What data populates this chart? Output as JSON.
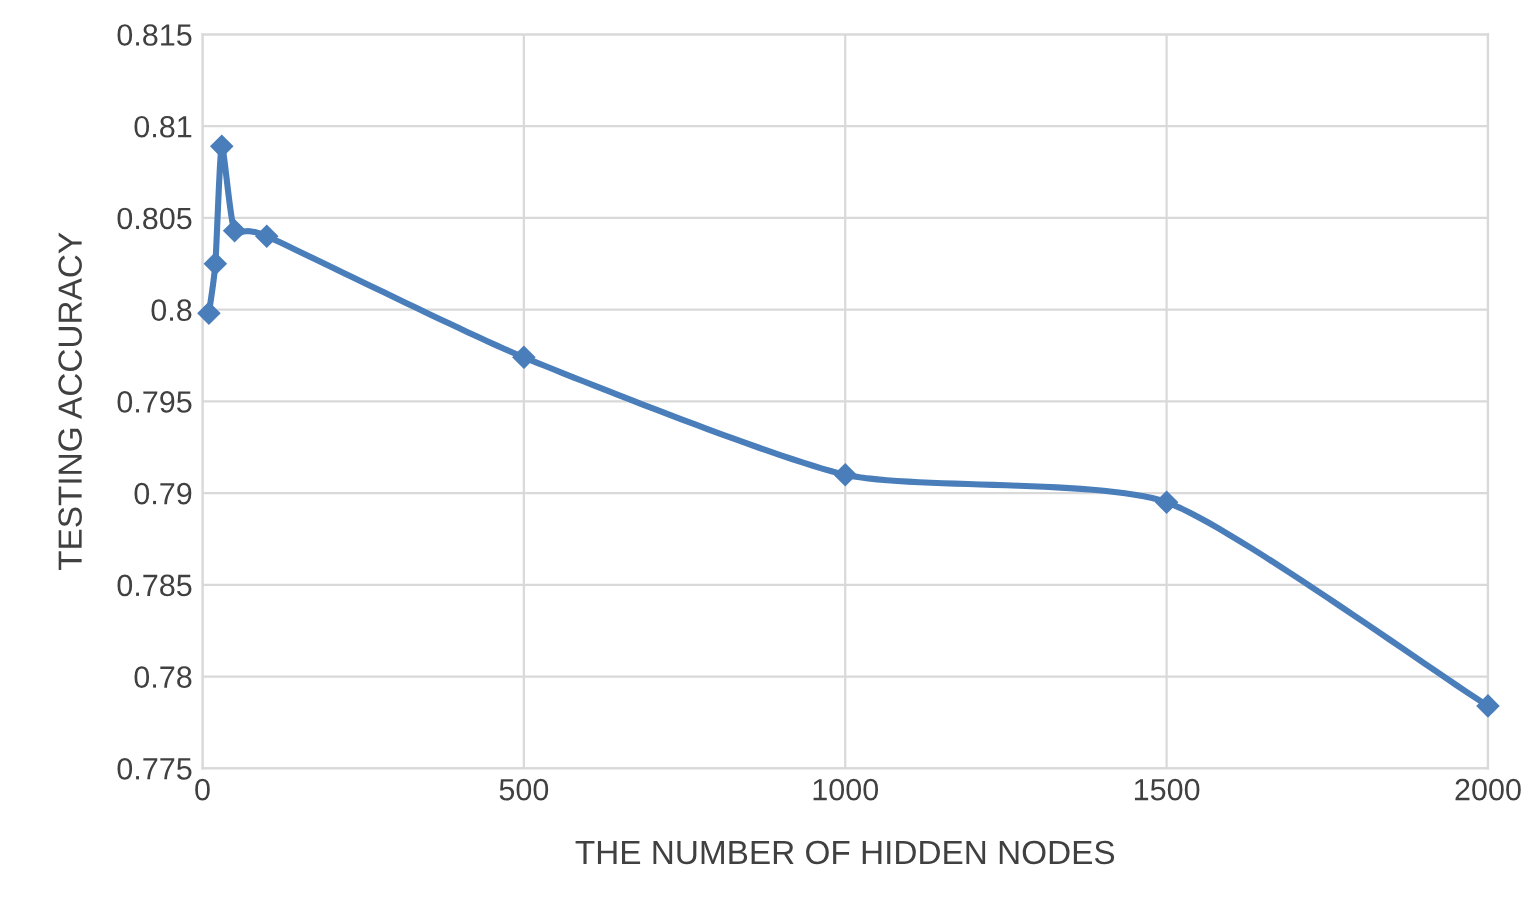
{
  "chart_data": {
    "type": "line",
    "xlabel": "THE NUMBER OF HIDDEN NODES",
    "ylabel": "TESTING ACCURACY",
    "x": [
      10,
      20,
      30,
      50,
      100,
      500,
      1000,
      1500,
      2000
    ],
    "series": [
      {
        "color": "#4a7ebb",
        "values": [
          0.7998,
          0.8025,
          0.8089,
          0.8043,
          0.804,
          0.7974,
          0.791,
          0.7895,
          0.7784
        ]
      }
    ],
    "xlim": [
      0,
      2000
    ],
    "xticks": [
      0,
      500,
      1000,
      1500,
      2000
    ],
    "ylim": [
      0.775,
      0.815
    ],
    "yticks": [
      0.775,
      0.78,
      0.785,
      0.79,
      0.795,
      0.8,
      0.805,
      0.81,
      0.815
    ],
    "grid": true,
    "marker": "diamond",
    "line_style": "solid"
  }
}
